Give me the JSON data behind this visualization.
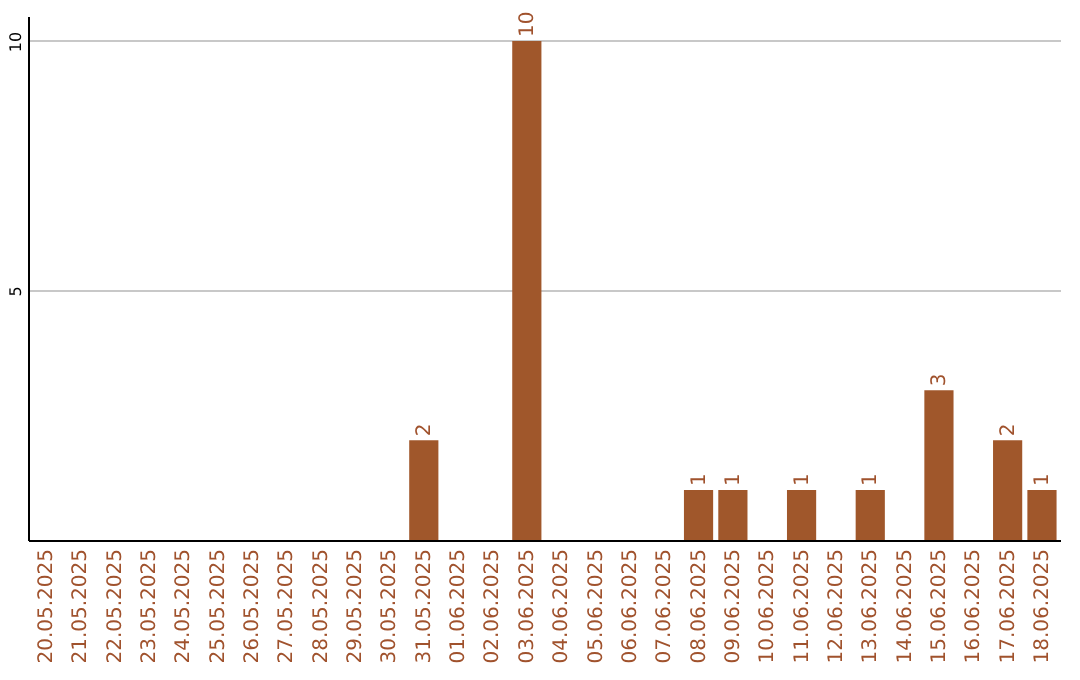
{
  "chart_data": {
    "type": "bar",
    "categories": [
      "20.05.2025",
      "21.05.2025",
      "22.05.2025",
      "23.05.2025",
      "24.05.2025",
      "25.05.2025",
      "26.05.2025",
      "27.05.2025",
      "28.05.2025",
      "29.05.2025",
      "30.05.2025",
      "31.05.2025",
      "01.06.2025",
      "02.06.2025",
      "03.06.2025",
      "04.06.2025",
      "05.06.2025",
      "06.06.2025",
      "07.06.2025",
      "08.06.2025",
      "09.06.2025",
      "10.06.2025",
      "11.06.2025",
      "12.06.2025",
      "13.06.2025",
      "14.06.2025",
      "15.06.2025",
      "16.06.2025",
      "17.06.2025",
      "18.06.2025"
    ],
    "values": [
      0,
      0,
      0,
      0,
      0,
      0,
      0,
      0,
      0,
      0,
      0,
      2,
      0,
      0,
      10,
      0,
      0,
      0,
      0,
      1,
      1,
      0,
      1,
      0,
      1,
      0,
      3,
      0,
      2,
      1
    ],
    "value_labels": [
      null,
      null,
      null,
      null,
      null,
      null,
      null,
      null,
      null,
      null,
      null,
      "2",
      null,
      null,
      "10",
      null,
      null,
      null,
      null,
      "1",
      "1",
      null,
      "1",
      null,
      "1",
      null,
      "3",
      null,
      "2",
      "1"
    ],
    "color": "#a0572b",
    "ylim": [
      0,
      10.5
    ],
    "yticks": [
      5,
      10
    ],
    "grid": "y"
  }
}
